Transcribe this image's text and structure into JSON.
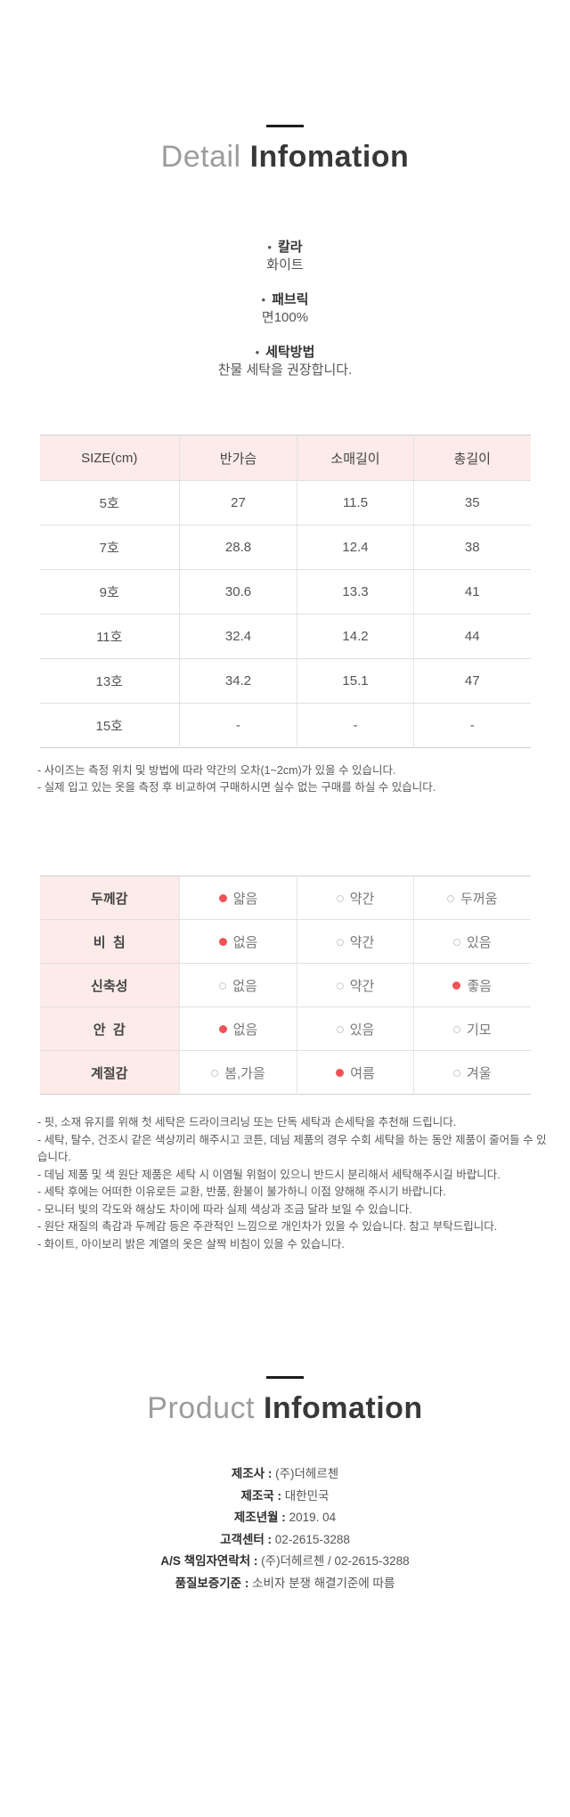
{
  "detail": {
    "title_light": "Detail",
    "title_bold": "Infomation",
    "specs": [
      {
        "label": "칼라",
        "value": "화이트"
      },
      {
        "label": "패브릭",
        "value": "면100%"
      },
      {
        "label": "세탁방법",
        "value": "찬물 세탁을 권장합니다."
      }
    ]
  },
  "size_table": {
    "columns": [
      "SIZE(cm)",
      "반가슴",
      "소매길이",
      "총길이"
    ],
    "rows": [
      {
        "size": "5호",
        "values": [
          "27",
          "11.5",
          "35"
        ]
      },
      {
        "size": "7호",
        "values": [
          "28.8",
          "12.4",
          "38"
        ]
      },
      {
        "size": "9호",
        "values": [
          "30.6",
          "13.3",
          "41"
        ]
      },
      {
        "size": "11호",
        "values": [
          "32.4",
          "14.2",
          "44"
        ]
      },
      {
        "size": "13호",
        "values": [
          "34.2",
          "15.1",
          "47"
        ]
      },
      {
        "size": "15호",
        "values": [
          "-",
          "-",
          "-"
        ]
      }
    ],
    "notes": [
      "- 사이즈는 측정 위치 및 방법에 따라 약간의 오차(1~2cm)가 있을 수 있습니다.",
      "- 실제 입고 있는 옷을 측정 후 비교하여 구매하시면 실수 없는 구매를 하실 수 있습니다."
    ]
  },
  "feature_table": {
    "rows": [
      {
        "label": "두께감",
        "options": [
          "얇음",
          "약간",
          "두꺼움"
        ],
        "selected": 0
      },
      {
        "label": "비  침",
        "options": [
          "없음",
          "약간",
          "있음"
        ],
        "selected": 0
      },
      {
        "label": "신축성",
        "options": [
          "없음",
          "약간",
          "좋음"
        ],
        "selected": 2
      },
      {
        "label": "안  감",
        "options": [
          "없음",
          "있음",
          "기모"
        ],
        "selected": 0
      },
      {
        "label": "계절감",
        "options": [
          "봄,가을",
          "여름",
          "겨울"
        ],
        "selected": 1
      }
    ],
    "notes": [
      "- 핏, 소재 유지를 위해 첫 세탁은 드라이크리닝 또는 단독 세탁과 손세탁을 추천해 드립니다.",
      "- 세탁, 탈수, 건조시 같은 색상끼리 해주시고 코튼, 데님 제품의 경우 수회 세탁을 하는 동안 제품이 줄어들 수 있습니다.",
      "- 데님 제품 및 색 원단 제품은 세탁 시 이염될 위험이 있으니 반드시 분리해서 세탁해주시길 바랍니다.",
      "- 세탁 후에는 어떠한 이유로든 교환, 반품, 환불이 불가하니 이점 양해해 주시기 바랍니다.",
      "- 모니터 빛의 각도와 해상도 차이에 따라 실제 색상과 조금 달라 보일 수 있습니다.",
      "- 원단 재질의 촉감과 두께감 등은 주관적인 느낌으로 개인차가 있을 수 있습니다. 참고 부탁드립니다.",
      "- 화이트, 아이보리 밝은 계열의 옷은 살짝 비침이 있을 수 있습니다."
    ]
  },
  "product": {
    "title_light": "Product",
    "title_bold": "Infomation",
    "separator": " : ",
    "info": [
      {
        "label": "제조사",
        "value": "(주)더헤르첸"
      },
      {
        "label": "제조국",
        "value": "대한민국"
      },
      {
        "label": "제조년월",
        "value": "2019. 04"
      },
      {
        "label": "고객센터",
        "value": "02-2615-3288"
      },
      {
        "label": "A/S 책임자연락처",
        "value": "(주)더헤르첸 / 02-2615-3288"
      },
      {
        "label": "품질보증기준",
        "value": "소비자 분쟁 해결기준에 따름"
      }
    ]
  },
  "colors": {
    "header_pink": "#fcebe8",
    "selected_dot": "#f15257",
    "title_dark": "#383838",
    "title_light_gray": "#9c9c9c"
  }
}
